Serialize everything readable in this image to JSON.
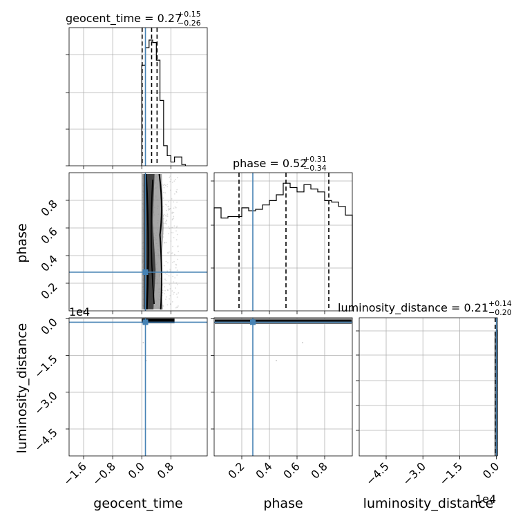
{
  "chart_data": {
    "type": "corner",
    "parameters": [
      "geocent_time",
      "phase",
      "luminosity_distance"
    ],
    "truth_color": "#4682b4",
    "titles": [
      {
        "param": "geocent_time",
        "prefix": "geocent_time = ",
        "median": "0.27",
        "plus": "+0.15",
        "minus": "−0.26"
      },
      {
        "param": "phase",
        "prefix": "phase = ",
        "median": "0.52",
        "plus": "+0.31",
        "minus": "−0.34"
      },
      {
        "param": "luminosity_distance",
        "prefix": "luminosity_distance = ",
        "median": "0.21",
        "plus": "+0.14",
        "minus": "−0.20"
      }
    ],
    "xlabels": [
      "geocent_time",
      "phase",
      "luminosity_distance"
    ],
    "ylabels": [
      "phase",
      "luminosity_distance"
    ],
    "offset_labels": [
      "1e4",
      "1e4"
    ],
    "ticks": {
      "geocent_time": [
        "−1.6",
        "−0.8",
        "0.0",
        "0.8"
      ],
      "phase_x": [
        "0.2",
        "0.4",
        "0.6",
        "0.8"
      ],
      "phase_y": [
        "0.2",
        "0.4",
        "0.6",
        "0.8"
      ],
      "luminosity_distance_x": [
        "−4.5",
        "−3.0",
        "−1.5",
        "0.0"
      ],
      "luminosity_distance_y": [
        "0.0",
        "−1.5",
        "−3.0",
        "−4.5"
      ]
    },
    "ranges": {
      "geocent_time": [
        -2.0,
        1.8
      ],
      "phase": [
        0.0,
        1.0
      ],
      "luminosity_distance_1e4": [
        -5.6,
        0.04
      ]
    },
    "truths": {
      "geocent_time": 0.1,
      "phase": 0.28,
      "luminosity_distance_1e4": 0.0
    },
    "quantiles": {
      "geocent_time": [
        0.01,
        0.27,
        0.42
      ],
      "phase": [
        0.18,
        0.52,
        0.83
      ],
      "luminosity_distance_1e4": [
        -0.05,
        0.0
      ]
    },
    "hist_geocent_time": {
      "edges": [
        0.0,
        0.1,
        0.2,
        0.3,
        0.4,
        0.5,
        0.6,
        0.7,
        0.8,
        0.9,
        1.0,
        1.1,
        1.2
      ],
      "counts": [
        0.8,
        0.94,
        1.0,
        0.98,
        0.84,
        0.52,
        0.16,
        0.08,
        0.03,
        0.07,
        0.07,
        0.01
      ]
    },
    "hist_phase": {
      "edges": [
        0.0,
        0.05,
        0.1,
        0.15,
        0.2,
        0.25,
        0.3,
        0.35,
        0.4,
        0.45,
        0.5,
        0.55,
        0.6,
        0.65,
        0.7,
        0.75,
        0.8,
        0.85,
        0.9,
        0.95,
        1.0
      ],
      "counts": [
        0.71,
        0.64,
        0.65,
        0.65,
        0.71,
        0.69,
        0.7,
        0.73,
        0.76,
        0.8,
        0.88,
        0.85,
        0.82,
        0.87,
        0.84,
        0.82,
        0.76,
        0.75,
        0.72,
        0.66
      ]
    },
    "hist_luminosity_distance": {
      "edges": [
        -0.05,
        0.0,
        0.04
      ],
      "counts": [
        0.95,
        1.0
      ]
    },
    "grid": true
  }
}
